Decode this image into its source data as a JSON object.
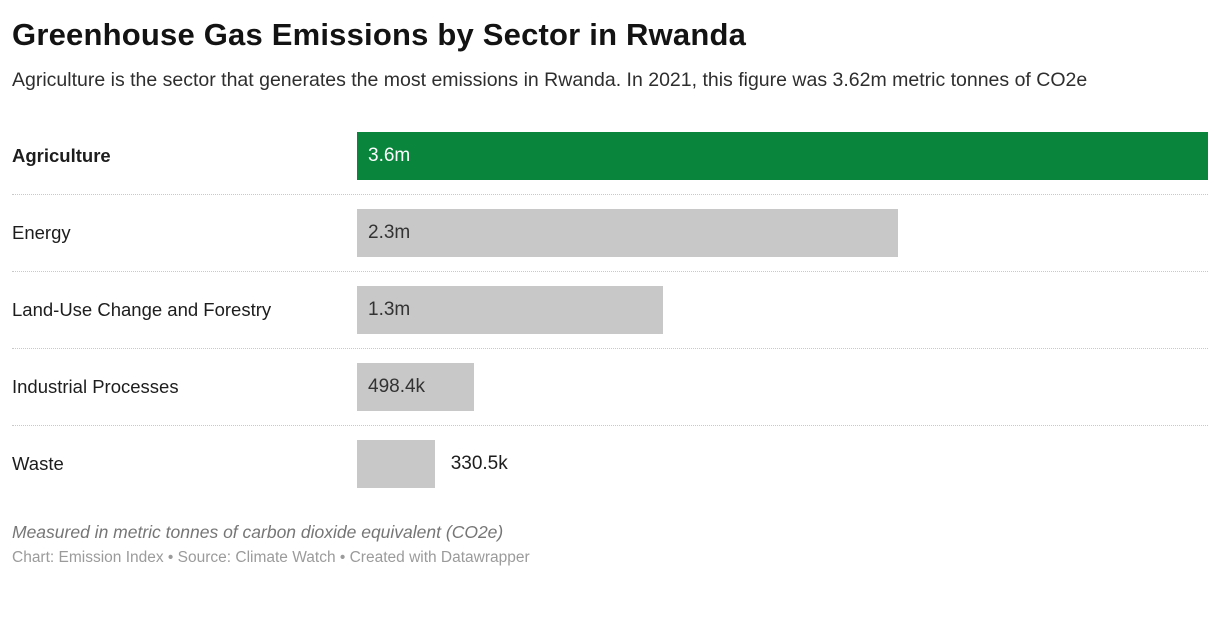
{
  "title": "Greenhouse Gas Emissions by Sector in Rwanda",
  "subtitle": "Agriculture is the sector that generates the most emissions in Rwanda. In 2021, this figure was 3.62m metric tonnes of CO2e",
  "chart_data": {
    "type": "bar",
    "orientation": "horizontal",
    "categories": [
      "Agriculture",
      "Energy",
      "Land-Use Change and Forestry",
      "Industrial Processes",
      "Waste"
    ],
    "values": [
      3620000,
      2300000,
      1300000,
      498400,
      330500
    ],
    "value_labels": [
      "3.6m",
      "2.3m",
      "1.3m",
      "498.4k",
      "330.5k"
    ],
    "unit": "metric tonnes of CO2e",
    "max_value": 3620000,
    "highlight_index": 0,
    "highlight_color": "#09853c",
    "bar_color": "#c8c8c8",
    "legend_position": "none",
    "grid": false
  },
  "footer": {
    "note": "Measured in metric tonnes of carbon dioxide equivalent (CO2e)",
    "credit": "Chart: Emission Index • Source: Climate Watch • Created with Datawrapper"
  }
}
